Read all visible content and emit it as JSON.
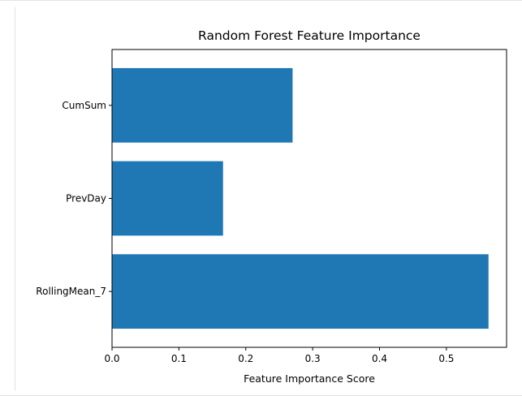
{
  "chart_data": {
    "type": "bar",
    "orientation": "horizontal",
    "title": "Random Forest Feature Importance",
    "xlabel": "Feature Importance Score",
    "ylabel": "",
    "categories": [
      "RollingMean_7",
      "PrevDay",
      "CumSum"
    ],
    "values": [
      0.563,
      0.166,
      0.27
    ],
    "xlim": [
      0,
      0.59
    ],
    "xticks": [
      "0.0",
      "0.1",
      "0.2",
      "0.3",
      "0.4",
      "0.5"
    ],
    "grid": false,
    "legend": "none",
    "colors": {
      "bar": "#1f77b4",
      "axes": "#000000",
      "background": "#ffffff"
    }
  }
}
